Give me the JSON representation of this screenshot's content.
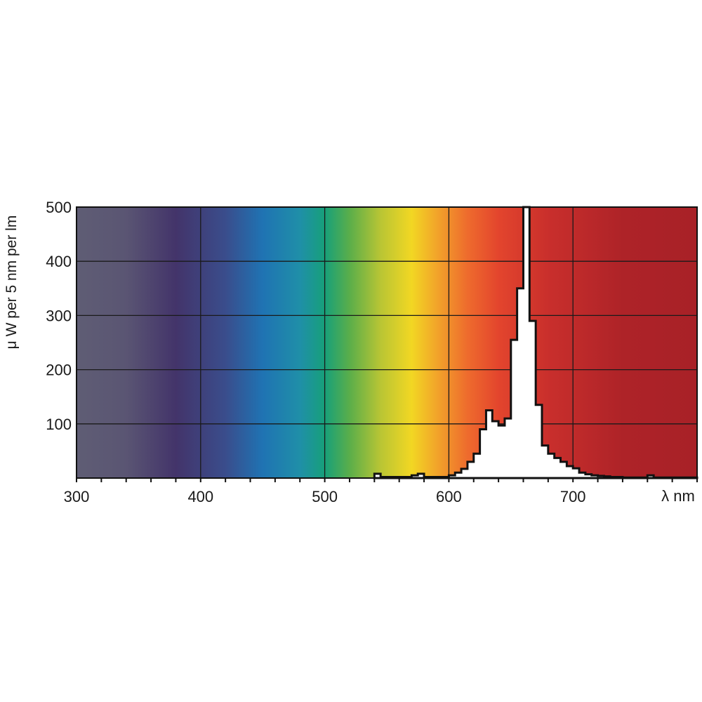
{
  "chart_data": {
    "type": "bar",
    "subtype": "step-histogram over visible spectrum gradient",
    "title": "",
    "xlabel": "λ nm",
    "ylabel": "μ W per 5 nm per lm",
    "xlim": [
      300,
      800
    ],
    "ylim": [
      0,
      500
    ],
    "x_ticks": [
      300,
      400,
      500,
      600,
      700
    ],
    "x_tick_labels": [
      "300",
      "400",
      "500",
      "600",
      "700"
    ],
    "x_minor_tick_step": 20,
    "y_ticks": [
      100,
      200,
      300,
      400,
      500
    ],
    "y_tick_labels": [
      "100",
      "200",
      "300",
      "400",
      "500"
    ],
    "grid": true,
    "bin_width_nm": 5,
    "bins_start_nm": [
      540,
      545,
      550,
      555,
      560,
      565,
      570,
      575,
      580,
      585,
      590,
      595,
      600,
      605,
      610,
      615,
      620,
      625,
      630,
      635,
      640,
      645,
      650,
      655,
      660,
      665,
      670,
      675,
      680,
      685,
      690,
      695,
      700,
      705,
      710,
      715,
      720,
      725,
      730,
      735,
      740,
      745,
      750,
      755,
      760,
      765,
      770,
      775,
      780,
      785,
      790,
      795
    ],
    "values": [
      8,
      2,
      2,
      2,
      2,
      2,
      5,
      8,
      2,
      2,
      2,
      2,
      5,
      10,
      17,
      30,
      45,
      90,
      125,
      105,
      97,
      110,
      255,
      350,
      500,
      290,
      135,
      60,
      45,
      37,
      30,
      22,
      18,
      10,
      7,
      5,
      4,
      3,
      2,
      2,
      1,
      1,
      1,
      1,
      5,
      1,
      1,
      1,
      1,
      1,
      1,
      1
    ],
    "legend": []
  },
  "axes": {
    "y_title": "μ W per 5 nm per lm",
    "x_title": "λ nm"
  },
  "colors": {
    "spectrum_stops": [
      {
        "nm": 300,
        "color": "#5f5d74"
      },
      {
        "nm": 340,
        "color": "#5a5573"
      },
      {
        "nm": 380,
        "color": "#43346a"
      },
      {
        "nm": 420,
        "color": "#3a4d8c"
      },
      {
        "nm": 450,
        "color": "#1f73b3"
      },
      {
        "nm": 480,
        "color": "#1f8fa8"
      },
      {
        "nm": 500,
        "color": "#17a07a"
      },
      {
        "nm": 520,
        "color": "#5aae4a"
      },
      {
        "nm": 545,
        "color": "#b9c534"
      },
      {
        "nm": 570,
        "color": "#f2d723"
      },
      {
        "nm": 590,
        "color": "#f2a52a"
      },
      {
        "nm": 615,
        "color": "#ee6b2d"
      },
      {
        "nm": 640,
        "color": "#e3452d"
      },
      {
        "nm": 680,
        "color": "#c92f2c"
      },
      {
        "nm": 740,
        "color": "#ae2328"
      },
      {
        "nm": 800,
        "color": "#a82127"
      }
    ],
    "curve_fill": "#ffffff",
    "curve_stroke": "#111111",
    "grid": "#1a1a1a"
  }
}
